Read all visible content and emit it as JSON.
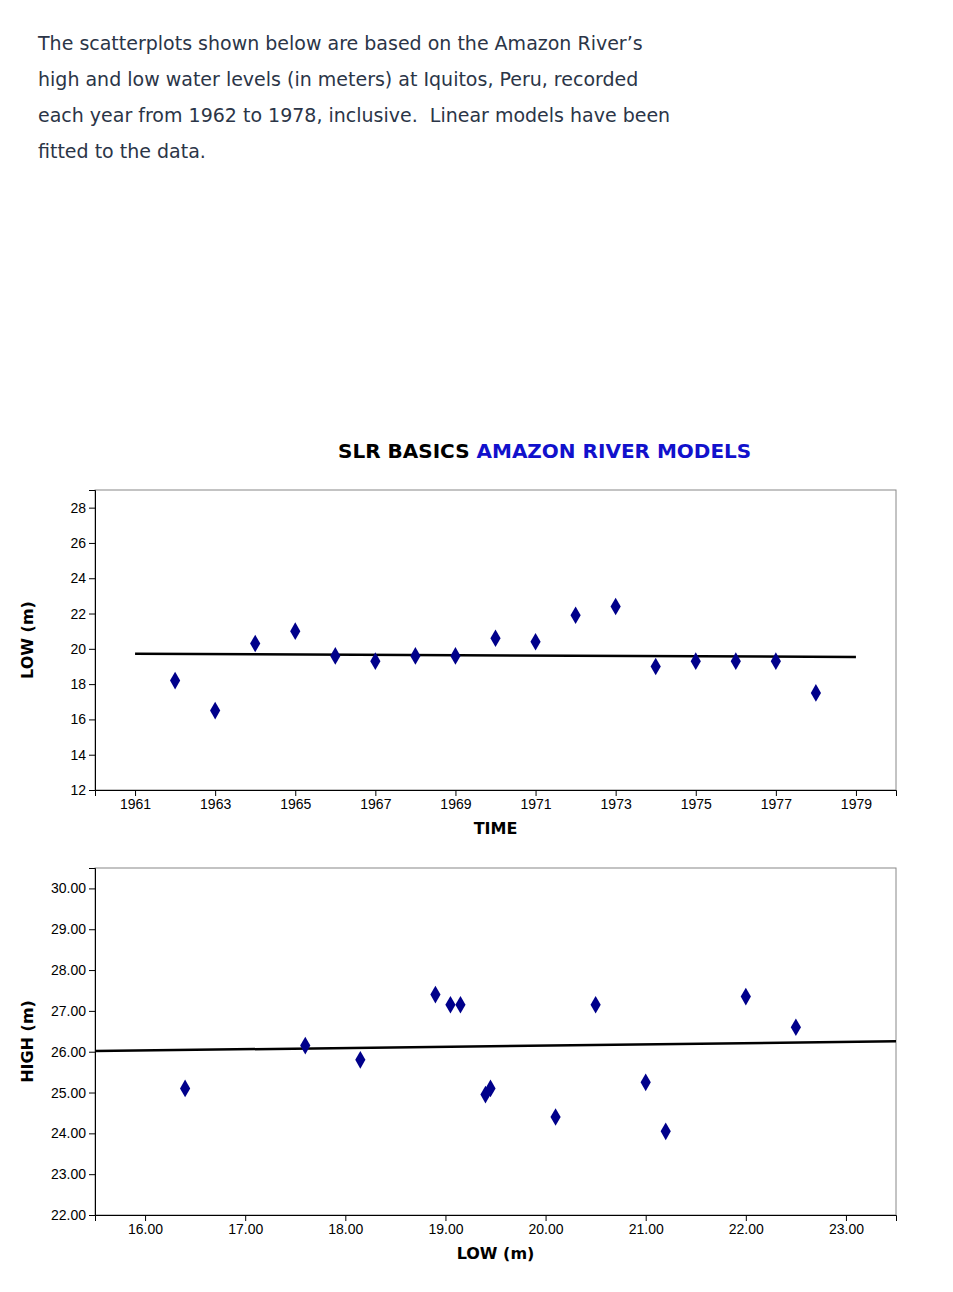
{
  "chart_data": [
    {
      "type": "scatter",
      "title": [
        {
          "text": "SLR BASICS ",
          "color": "#000000"
        },
        {
          "text": "AMAZON RIVER MODELS",
          "color": "#1111CC"
        }
      ],
      "annotations": [
        {
          "text": "The scatterplots shown below are based on the Amazon River’s",
          "color": "#2b3547"
        },
        {
          "text": "high and low water levels (in meters) at Iquitos, Peru, recorded",
          "color": "#2b3547"
        },
        {
          "text": "each year from 1962 to 1978, inclusive.  Linear models have been",
          "color": "#2b3547"
        },
        {
          "text": "fitted to the data.",
          "color": "#2b3547"
        }
      ],
      "x_label": "TIME",
      "y_label": "LOW (m)",
      "grid": false,
      "xlim": [
        1960,
        1980
      ],
      "xticks": [
        1961,
        1963,
        1965,
        1967,
        1969,
        1971,
        1973,
        1975,
        1977,
        1979
      ],
      "ylim": [
        12,
        29
      ],
      "yticks": [
        12,
        14,
        16,
        18,
        20,
        22,
        24,
        26,
        28
      ],
      "series": [
        {
          "type": "scatter",
          "marker": "diamond",
          "color": "#00008B",
          "x": [
            1962,
            1963,
            1964,
            1965,
            1966,
            1967,
            1968,
            1969,
            1970,
            1971,
            1972,
            1973,
            1974,
            1975,
            1976,
            1977,
            1978
          ],
          "values": [
            18.2,
            16.5,
            20.3,
            21.0,
            19.6,
            19.3,
            19.6,
            19.6,
            20.6,
            20.4,
            21.9,
            22.4,
            19.0,
            19.3,
            19.3,
            19.3,
            17.5
          ]
        },
        {
          "type": "line",
          "line_style": "solid",
          "color": "#000000",
          "x": [
            1961,
            1979
          ],
          "values": [
            19.72,
            19.54
          ]
        }
      ]
    },
    {
      "type": "scatter",
      "x_label": "LOW (m)",
      "y_label": "HIGH (m)",
      "grid": false,
      "xlim": [
        15.5,
        23.5
      ],
      "xticks": [
        {
          "value": 16.0,
          "label": "16.00"
        },
        {
          "value": 17.0,
          "label": "17.00"
        },
        {
          "value": 18.0,
          "label": "18.00"
        },
        {
          "value": 19.0,
          "label": "19.00"
        },
        {
          "value": 20.0,
          "label": "20.00"
        },
        {
          "value": 21.0,
          "label": "21.00"
        },
        {
          "value": 22.0,
          "label": "22.00"
        },
        {
          "value": 23.0,
          "label": "23.00"
        }
      ],
      "ylim": [
        22.0,
        30.5
      ],
      "yticks": [
        {
          "value": 22.0,
          "label": "22.00"
        },
        {
          "value": 23.0,
          "label": "23.00"
        },
        {
          "value": 24.0,
          "label": "24.00"
        },
        {
          "value": 25.0,
          "label": "25.00"
        },
        {
          "value": 26.0,
          "label": "26.00"
        },
        {
          "value": 27.0,
          "label": "27.00"
        },
        {
          "value": 28.0,
          "label": "28.00"
        },
        {
          "value": 29.0,
          "label": "29.00"
        },
        {
          "value": 30.0,
          "label": "30.00"
        }
      ],
      "series": [
        {
          "type": "scatter",
          "marker": "diamond",
          "color": "#00008B",
          "x": [
            16.4,
            17.6,
            18.15,
            18.9,
            19.05,
            19.15,
            19.4,
            19.45,
            20.1,
            20.5,
            21.0,
            21.2,
            22.0,
            22.5
          ],
          "values": [
            25.1,
            26.15,
            25.8,
            27.4,
            27.15,
            27.15,
            24.95,
            25.1,
            24.4,
            27.15,
            25.25,
            24.05,
            27.35,
            26.6
          ]
        },
        {
          "type": "line",
          "line_style": "solid",
          "color": "#000000",
          "x": [
            15.5,
            23.5
          ],
          "values": [
            26.015,
            26.255
          ]
        }
      ]
    }
  ]
}
